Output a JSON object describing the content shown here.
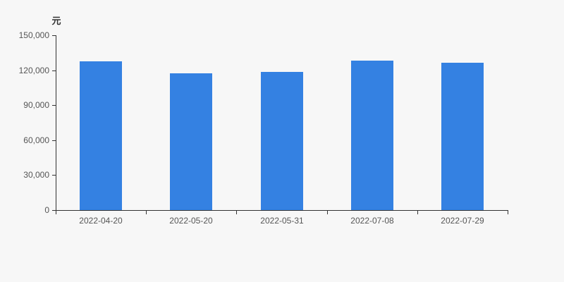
{
  "chart_data": {
    "type": "bar",
    "title": "",
    "ylabel": "元",
    "xlabel": "",
    "categories": [
      "2022-04-20",
      "2022-05-20",
      "2022-05-31",
      "2022-07-08",
      "2022-07-29"
    ],
    "values": [
      127700,
      117400,
      118300,
      128500,
      126200
    ],
    "ylim": [
      0,
      150000
    ],
    "y_ticks": [
      {
        "value": 0,
        "label": "0"
      },
      {
        "value": 30000,
        "label": "30,000"
      },
      {
        "value": 60000,
        "label": "60,000"
      },
      {
        "value": 90000,
        "label": "90,000"
      },
      {
        "value": 120000,
        "label": "120,000"
      },
      {
        "value": 150000,
        "label": "150,000"
      }
    ],
    "grid": false,
    "legend": false,
    "bar_color": "#3481e2",
    "axis_color": "#333333",
    "tick_label_color": "#555555",
    "axis_name_color": "#333333",
    "background_color": "#f7f7f7"
  }
}
